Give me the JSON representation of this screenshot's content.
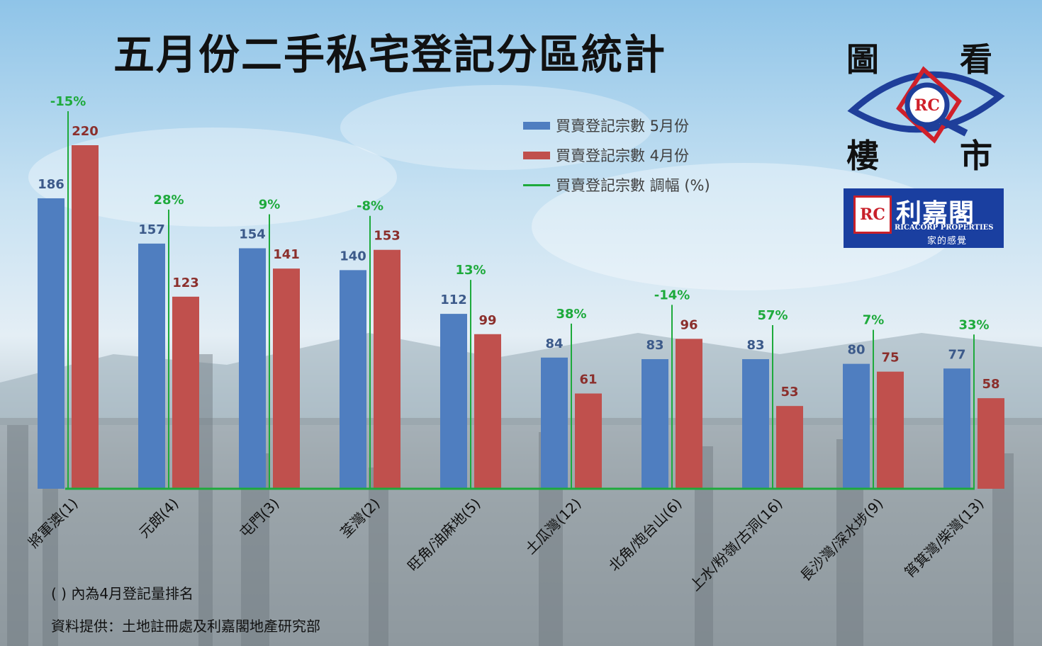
{
  "title": "五月份二手私宅登記分區統計",
  "legend": {
    "may": "買賣登記宗數 5月份",
    "april": "買賣登記宗數 4月份",
    "change": "買賣登記宗數 調幅 (%)"
  },
  "footnotes": {
    "rank_note": "( ) 內為4月登記量排名",
    "source": "資料提供：土地註冊處及利嘉閣地產研究部"
  },
  "logo": {
    "eye_chars": [
      "圖",
      "看",
      "樓",
      "市"
    ],
    "rc_mark": "RC",
    "brand_cn": "利嘉閣",
    "brand_en": "RICACORP PROPERTIES",
    "tagline": "家的感覺"
  },
  "colors": {
    "may": "#4f7ec0",
    "april": "#c0504d",
    "change": "#1eaa3c",
    "may_label": "#3c5a8a",
    "april_label": "#8b2f2c"
  },
  "chart_data": {
    "type": "bar",
    "categories": [
      "將軍澳(1)",
      "元朗(4)",
      "屯門(3)",
      "荃灣(2)",
      "旺角/油麻地(5)",
      "土瓜灣(12)",
      "北角/炮台山(6)",
      "上水/粉嶺/古洞(16)",
      "長沙灣/深水埗(9)",
      "筲箕灣/柴灣(13)"
    ],
    "series": [
      {
        "name": "買賣登記宗數 5月份",
        "values": [
          186,
          157,
          154,
          140,
          112,
          84,
          83,
          83,
          80,
          77
        ]
      },
      {
        "name": "買賣登記宗數 4月份",
        "values": [
          220,
          123,
          141,
          153,
          99,
          61,
          96,
          53,
          75,
          58
        ]
      },
      {
        "name": "買賣登記宗數 調幅 (%)",
        "values": [
          "-15%",
          "28%",
          "9%",
          "-8%",
          "13%",
          "38%",
          "-14%",
          "57%",
          "7%",
          "33%"
        ]
      }
    ],
    "ylim": [
      0,
      220
    ],
    "grid": false,
    "legend_position": "top-right"
  }
}
